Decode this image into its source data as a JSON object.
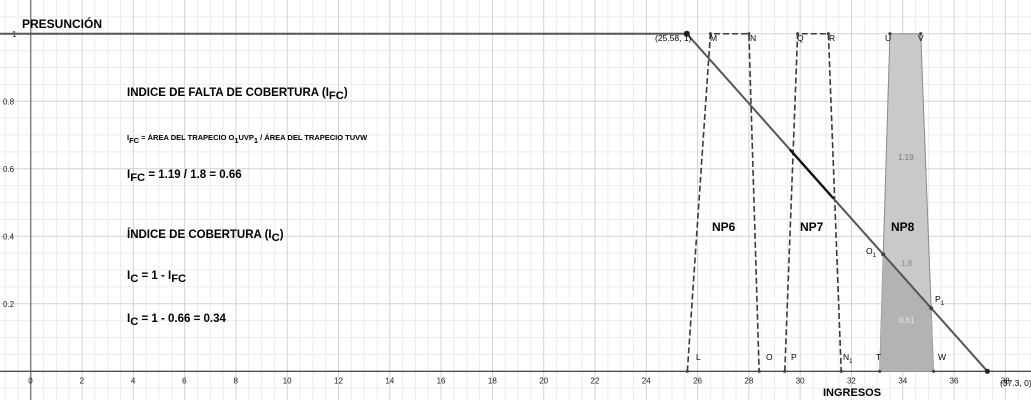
{
  "axes": {
    "y_title": "PRESUNCIÓN",
    "x_title": "INGRESOS",
    "x_ticks": [
      "0",
      "2",
      "4",
      "6",
      "8",
      "10",
      "12",
      "14",
      "16",
      "18",
      "20",
      "22",
      "24",
      "26",
      "28",
      "30",
      "32",
      "34",
      "36",
      "38"
    ],
    "y_ticks": [
      "0.2",
      "0.4",
      "0.6",
      "0.8",
      "1"
    ],
    "x_range": [
      -1.2,
      39.0
    ],
    "y_range": [
      -0.085,
      1.1
    ]
  },
  "shapes": {
    "presuncion_line": [
      [
        -1.2,
        1
      ],
      [
        25.58,
        1
      ],
      [
        37.3,
        0
      ]
    ],
    "np6": {
      "label": "NP6",
      "points": [
        [
          25.6,
          0
        ],
        [
          26.5,
          1
        ],
        [
          28.0,
          1
        ],
        [
          28.4,
          0
        ]
      ]
    },
    "np7": {
      "label": "NP7",
      "points": [
        [
          29.4,
          0
        ],
        [
          29.9,
          1
        ],
        [
          31.1,
          1
        ],
        [
          31.6,
          0
        ]
      ]
    },
    "np8": {
      "label": "NP8",
      "points": [
        [
          33.1,
          0
        ],
        [
          33.5,
          1
        ],
        [
          34.7,
          1
        ],
        [
          35.2,
          0
        ]
      ]
    },
    "np8_fill": "#c9c9c9",
    "np8_lower_fill": "#b3b3b3"
  },
  "labels": {
    "peak_point": "(25.58, 1)",
    "x_end": "(37.3, 0)",
    "M": "M",
    "N": "N",
    "Q": "Q",
    "R": "R",
    "U": "U",
    "V": "V",
    "L": "L",
    "O": "O",
    "P": "P",
    "T": "T",
    "W": "W",
    "N1_base": "N",
    "N1_sub": "1",
    "O1_base": "O",
    "O1_sub": "1",
    "P1_base": "P",
    "P1_sub": "1",
    "area_119": "1.19",
    "area_18": "1.8",
    "area_061": "0.61"
  },
  "annotations": {
    "title_ifc_text": "INDICE DE FALTA DE COBERTURA (I",
    "title_ifc_sub": "FC",
    "close_paren": ")",
    "formula_i": "I",
    "formula_sub": "FC",
    "formula_mid": " = ÁREA DEL TRAPECIO O",
    "formula_sub1a": "1",
    "formula_uvp": "UVP",
    "formula_sub1b": "1",
    "formula_tail": "  /  ÁREA DEL TRAPECIO TUVW",
    "ifc_value_i": "I",
    "ifc_value_sub": "FC",
    "ifc_value_text": " = 1.19 / 1.8  =  0.66",
    "title_ic_text": "ÍNDICE DE COBERTURA (I",
    "title_ic_sub": "C",
    "ic_formula_i": "I",
    "ic_formula_sub": "C",
    "ic_formula_mid": " = 1 - I",
    "ic_formula_sub2": "FC",
    "ic_value_i": "I",
    "ic_value_sub": "C",
    "ic_value_text": " = 1 - 0.66 = 0.34"
  }
}
